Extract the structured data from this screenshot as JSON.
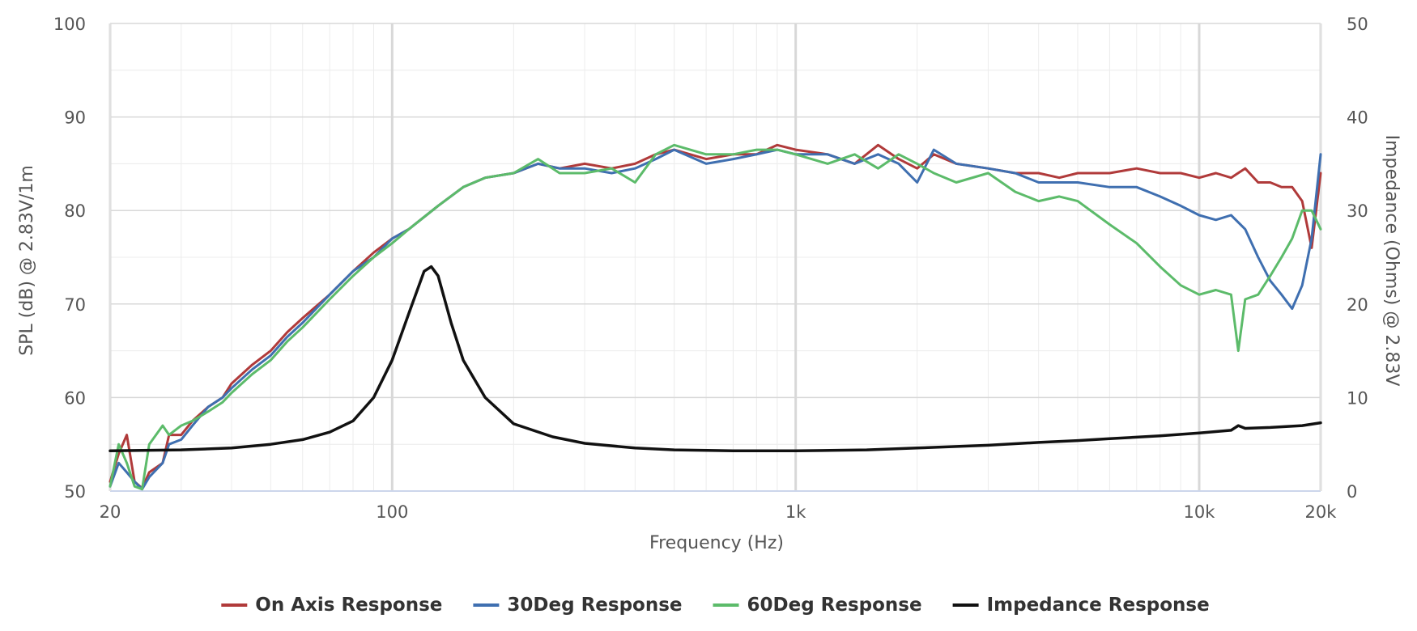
{
  "chart_data": {
    "type": "line",
    "title": "",
    "xlabel": "Frequency (Hz)",
    "ylabel": "SPL (dB) @ 2.83V/1m",
    "y2label": "Impedance (Ohms) @ 2.83V",
    "xscale": "log",
    "xlim": [
      20,
      20000
    ],
    "ylim": [
      50,
      100
    ],
    "y2lim": [
      0,
      50
    ],
    "x_ticks": [
      {
        "value": 20,
        "label": "20"
      },
      {
        "value": 100,
        "label": "100"
      },
      {
        "value": 1000,
        "label": "1k"
      },
      {
        "value": 10000,
        "label": "10k"
      },
      {
        "value": 20000,
        "label": "20k"
      }
    ],
    "y_ticks": [
      {
        "value": 50,
        "label": "50"
      },
      {
        "value": 60,
        "label": "60"
      },
      {
        "value": 70,
        "label": "70"
      },
      {
        "value": 80,
        "label": "80"
      },
      {
        "value": 90,
        "label": "90"
      },
      {
        "value": 100,
        "label": "100"
      }
    ],
    "y2_ticks": [
      {
        "value": 0,
        "label": "0"
      },
      {
        "value": 10,
        "label": "10"
      },
      {
        "value": 20,
        "label": "20"
      },
      {
        "value": 30,
        "label": "30"
      },
      {
        "value": 40,
        "label": "40"
      },
      {
        "value": 50,
        "label": "50"
      }
    ],
    "grid": true,
    "legend_position": "bottom-center",
    "series": [
      {
        "name": "On Axis Response",
        "color": "#b03a3a",
        "axis": "left",
        "points": [
          [
            20,
            51
          ],
          [
            21,
            54
          ],
          [
            22,
            56
          ],
          [
            23,
            51
          ],
          [
            24,
            50.3
          ],
          [
            25,
            52
          ],
          [
            27,
            53
          ],
          [
            28,
            56
          ],
          [
            30,
            56
          ],
          [
            32,
            57.5
          ],
          [
            35,
            59
          ],
          [
            38,
            60
          ],
          [
            40,
            61.5
          ],
          [
            45,
            63.5
          ],
          [
            50,
            65
          ],
          [
            55,
            67
          ],
          [
            60,
            68.5
          ],
          [
            70,
            71
          ],
          [
            80,
            73.5
          ],
          [
            90,
            75.5
          ],
          [
            100,
            77
          ],
          [
            110,
            78
          ],
          [
            130,
            80.5
          ],
          [
            150,
            82.5
          ],
          [
            170,
            83.5
          ],
          [
            200,
            84
          ],
          [
            230,
            85
          ],
          [
            260,
            84.5
          ],
          [
            300,
            85
          ],
          [
            350,
            84.5
          ],
          [
            400,
            85
          ],
          [
            450,
            86
          ],
          [
            500,
            86.5
          ],
          [
            600,
            85.5
          ],
          [
            700,
            86
          ],
          [
            800,
            86
          ],
          [
            900,
            87
          ],
          [
            1000,
            86.5
          ],
          [
            1200,
            86
          ],
          [
            1400,
            85
          ],
          [
            1600,
            87
          ],
          [
            1800,
            85.5
          ],
          [
            2000,
            84.5
          ],
          [
            2200,
            86
          ],
          [
            2500,
            85
          ],
          [
            3000,
            84.5
          ],
          [
            3500,
            84
          ],
          [
            4000,
            84
          ],
          [
            4500,
            83.5
          ],
          [
            5000,
            84
          ],
          [
            6000,
            84
          ],
          [
            7000,
            84.5
          ],
          [
            8000,
            84
          ],
          [
            9000,
            84
          ],
          [
            10000,
            83.5
          ],
          [
            11000,
            84
          ],
          [
            12000,
            83.5
          ],
          [
            13000,
            84.5
          ],
          [
            14000,
            83
          ],
          [
            15000,
            83
          ],
          [
            16000,
            82.5
          ],
          [
            17000,
            82.5
          ],
          [
            18000,
            81
          ],
          [
            19000,
            76
          ],
          [
            20000,
            84
          ]
        ]
      },
      {
        "name": "30Deg Response",
        "color": "#3f6fb0",
        "axis": "left",
        "points": [
          [
            20,
            50.5
          ],
          [
            21,
            53
          ],
          [
            22,
            52
          ],
          [
            23,
            51
          ],
          [
            24,
            50.2
          ],
          [
            25,
            51.5
          ],
          [
            27,
            53
          ],
          [
            28,
            55
          ],
          [
            30,
            55.5
          ],
          [
            32,
            57
          ],
          [
            35,
            59
          ],
          [
            38,
            60
          ],
          [
            40,
            61
          ],
          [
            45,
            63
          ],
          [
            50,
            64.5
          ],
          [
            55,
            66.5
          ],
          [
            60,
            68
          ],
          [
            70,
            71
          ],
          [
            80,
            73.5
          ],
          [
            90,
            75
          ],
          [
            100,
            77
          ],
          [
            110,
            78
          ],
          [
            130,
            80.5
          ],
          [
            150,
            82.5
          ],
          [
            170,
            83.5
          ],
          [
            200,
            84
          ],
          [
            230,
            85
          ],
          [
            260,
            84.5
          ],
          [
            300,
            84.5
          ],
          [
            350,
            84
          ],
          [
            400,
            84.5
          ],
          [
            450,
            85.5
          ],
          [
            500,
            86.5
          ],
          [
            600,
            85
          ],
          [
            700,
            85.5
          ],
          [
            800,
            86
          ],
          [
            900,
            86.5
          ],
          [
            1000,
            86
          ],
          [
            1200,
            86
          ],
          [
            1400,
            85
          ],
          [
            1600,
            86
          ],
          [
            1800,
            85
          ],
          [
            2000,
            83
          ],
          [
            2200,
            86.5
          ],
          [
            2500,
            85
          ],
          [
            3000,
            84.5
          ],
          [
            3500,
            84
          ],
          [
            4000,
            83
          ],
          [
            4500,
            83
          ],
          [
            5000,
            83
          ],
          [
            6000,
            82.5
          ],
          [
            7000,
            82.5
          ],
          [
            8000,
            81.5
          ],
          [
            9000,
            80.5
          ],
          [
            10000,
            79.5
          ],
          [
            11000,
            79
          ],
          [
            12000,
            79.5
          ],
          [
            13000,
            78
          ],
          [
            14000,
            75
          ],
          [
            15000,
            72.5
          ],
          [
            16000,
            71
          ],
          [
            17000,
            69.5
          ],
          [
            18000,
            72
          ],
          [
            19000,
            77
          ],
          [
            20000,
            86
          ]
        ]
      },
      {
        "name": "60Deg Response",
        "color": "#5cbb6a",
        "axis": "left",
        "points": [
          [
            20,
            50.5
          ],
          [
            21,
            55
          ],
          [
            22,
            53
          ],
          [
            23,
            50.5
          ],
          [
            24,
            50.2
          ],
          [
            25,
            55
          ],
          [
            27,
            57
          ],
          [
            28,
            56
          ],
          [
            30,
            57
          ],
          [
            32,
            57.5
          ],
          [
            35,
            58.5
          ],
          [
            38,
            59.5
          ],
          [
            40,
            60.5
          ],
          [
            45,
            62.5
          ],
          [
            50,
            64
          ],
          [
            55,
            66
          ],
          [
            60,
            67.5
          ],
          [
            70,
            70.5
          ],
          [
            80,
            73
          ],
          [
            90,
            75
          ],
          [
            100,
            76.5
          ],
          [
            110,
            78
          ],
          [
            130,
            80.5
          ],
          [
            150,
            82.5
          ],
          [
            170,
            83.5
          ],
          [
            200,
            84
          ],
          [
            230,
            85.5
          ],
          [
            260,
            84
          ],
          [
            300,
            84
          ],
          [
            350,
            84.5
          ],
          [
            400,
            83
          ],
          [
            450,
            86
          ],
          [
            500,
            87
          ],
          [
            600,
            86
          ],
          [
            700,
            86
          ],
          [
            800,
            86.5
          ],
          [
            900,
            86.5
          ],
          [
            1000,
            86
          ],
          [
            1200,
            85
          ],
          [
            1400,
            86
          ],
          [
            1600,
            84.5
          ],
          [
            1800,
            86
          ],
          [
            2000,
            85
          ],
          [
            2200,
            84
          ],
          [
            2500,
            83
          ],
          [
            3000,
            84
          ],
          [
            3500,
            82
          ],
          [
            4000,
            81
          ],
          [
            4500,
            81.5
          ],
          [
            5000,
            81
          ],
          [
            6000,
            78.5
          ],
          [
            7000,
            76.5
          ],
          [
            8000,
            74
          ],
          [
            9000,
            72
          ],
          [
            10000,
            71
          ],
          [
            11000,
            71.5
          ],
          [
            12000,
            71
          ],
          [
            12500,
            65
          ],
          [
            13000,
            70.5
          ],
          [
            14000,
            71
          ],
          [
            15000,
            73
          ],
          [
            16000,
            75
          ],
          [
            17000,
            77
          ],
          [
            18000,
            80
          ],
          [
            19000,
            80
          ],
          [
            20000,
            78
          ]
        ]
      },
      {
        "name": "Impedance Response",
        "color": "#111111",
        "axis": "right",
        "points": [
          [
            20,
            4.3
          ],
          [
            30,
            4.4
          ],
          [
            40,
            4.6
          ],
          [
            50,
            5
          ],
          [
            60,
            5.5
          ],
          [
            70,
            6.3
          ],
          [
            80,
            7.5
          ],
          [
            90,
            10
          ],
          [
            100,
            14
          ],
          [
            110,
            19
          ],
          [
            120,
            23.5
          ],
          [
            125,
            24
          ],
          [
            130,
            23
          ],
          [
            140,
            18
          ],
          [
            150,
            14
          ],
          [
            170,
            10
          ],
          [
            200,
            7.2
          ],
          [
            250,
            5.8
          ],
          [
            300,
            5.1
          ],
          [
            400,
            4.6
          ],
          [
            500,
            4.4
          ],
          [
            700,
            4.3
          ],
          [
            1000,
            4.3
          ],
          [
            1500,
            4.4
          ],
          [
            2000,
            4.6
          ],
          [
            3000,
            4.9
          ],
          [
            4000,
            5.2
          ],
          [
            5000,
            5.4
          ],
          [
            6000,
            5.6
          ],
          [
            8000,
            5.9
          ],
          [
            10000,
            6.2
          ],
          [
            12000,
            6.5
          ],
          [
            12500,
            7
          ],
          [
            13000,
            6.7
          ],
          [
            15000,
            6.8
          ],
          [
            18000,
            7.0
          ],
          [
            20000,
            7.3
          ]
        ]
      }
    ]
  }
}
